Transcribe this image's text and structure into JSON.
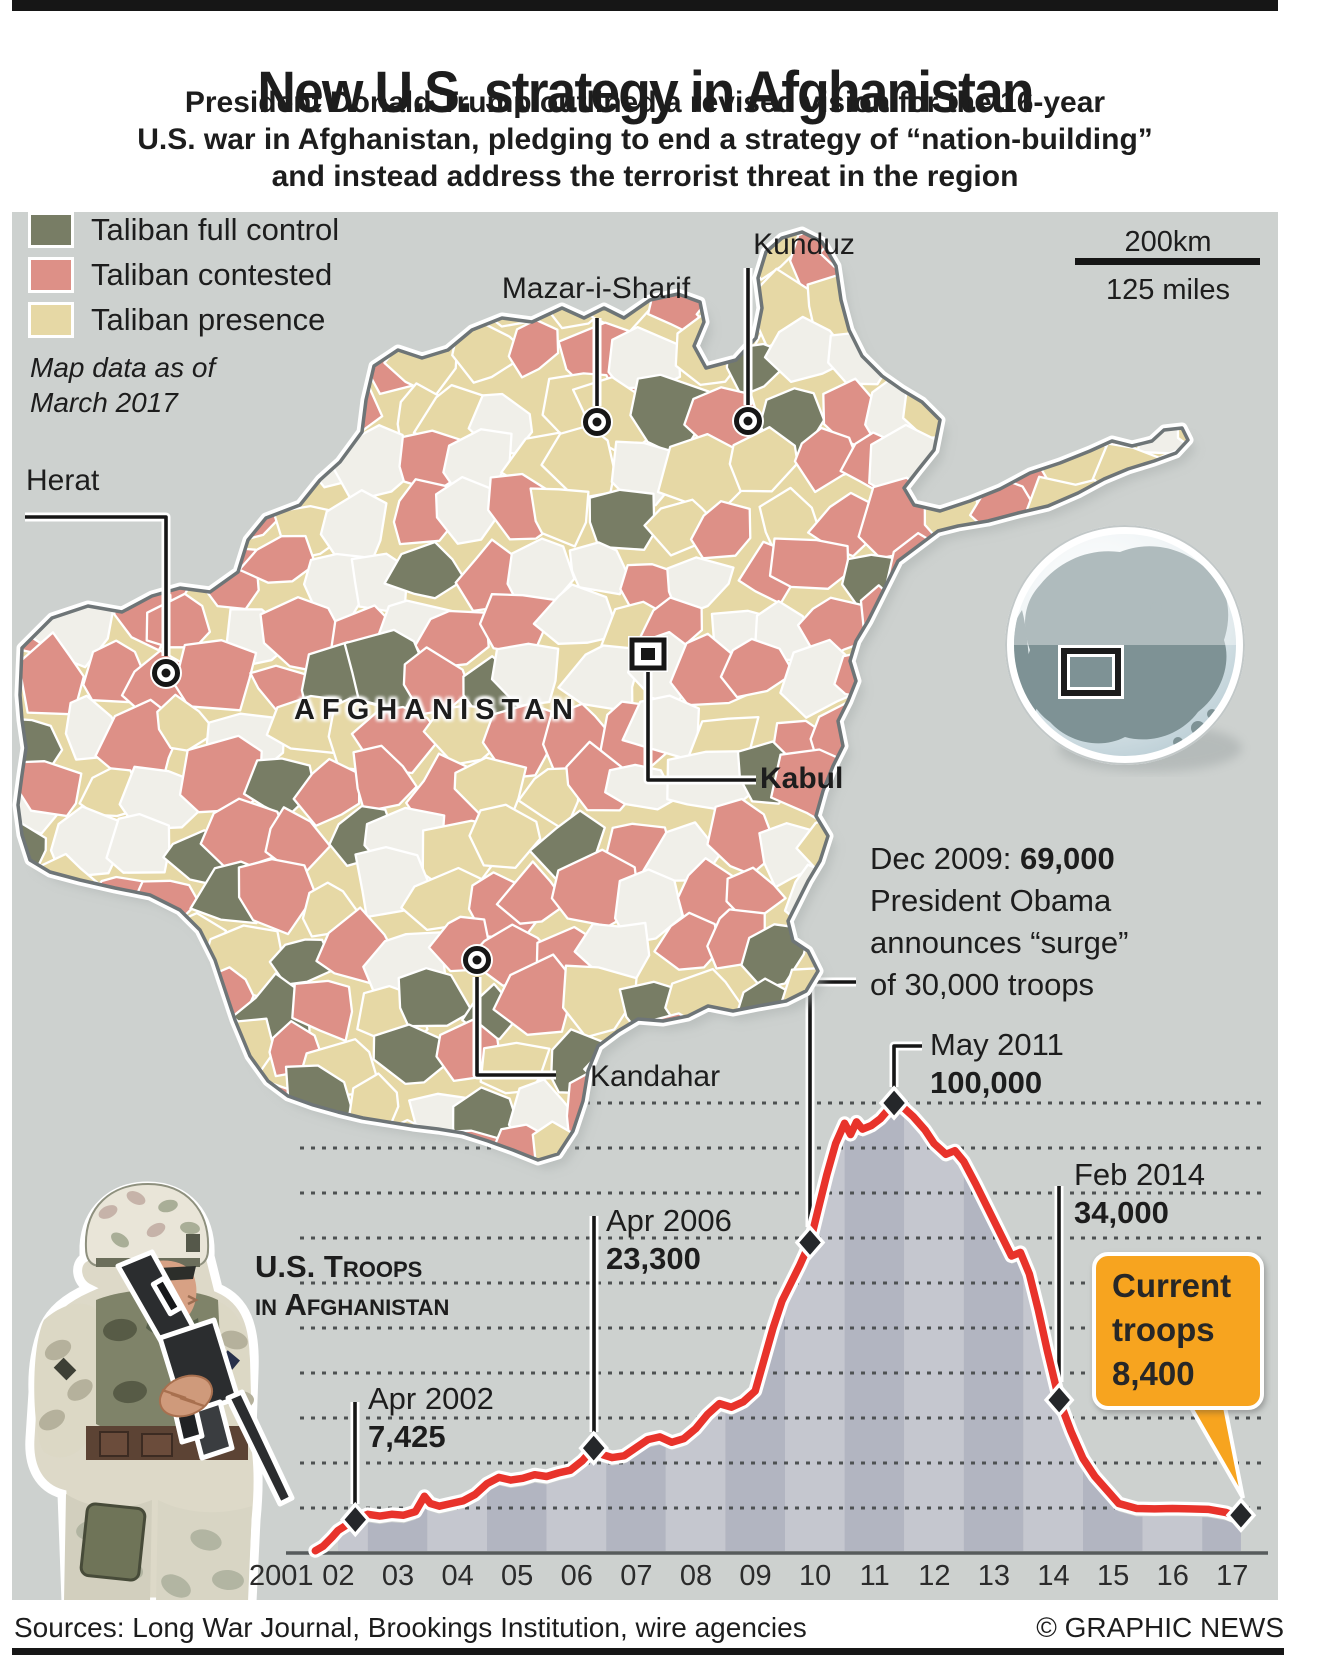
{
  "header": {
    "title": "New U.S. strategy in Afghanistan",
    "subtitle_lines": [
      "President Donald Trump outlined a revised vision for the 16-year",
      "U.S. war in Afghanistan, pledging to end a strategy of “nation-building”",
      "and instead address the terrorist threat in the region"
    ]
  },
  "map": {
    "legend": [
      {
        "label": "Taliban full control",
        "color": "#787d65"
      },
      {
        "label": "Taliban contested",
        "color": "#dd9087"
      },
      {
        "label": "Taliban presence",
        "color": "#e6d8a5"
      }
    ],
    "no_data_color": "#f0efe9",
    "note_lines": [
      "Map data as of",
      "March 2017"
    ],
    "country_label": "AFGHANISTAN",
    "cities": {
      "mazar": {
        "name": "Mazar-i-Sharif"
      },
      "kunduz": {
        "name": "Kunduz"
      },
      "herat": {
        "name": "Herat"
      },
      "kandahar": {
        "name": "Kandahar"
      },
      "kabul": {
        "name": "Kabul"
      }
    },
    "scale": {
      "top": "200km",
      "bottom": "125 miles"
    }
  },
  "chart_data": {
    "type": "line",
    "title_lines": [
      "U.S. Troops",
      "in Afghanistan"
    ],
    "line_color": "#e8332b",
    "x_ticks": [
      "2001",
      "02",
      "03",
      "04",
      "05",
      "06",
      "07",
      "08",
      "09",
      "10",
      "11",
      "12",
      "13",
      "14",
      "15",
      "16",
      "17"
    ],
    "ylim": [
      0,
      100000
    ],
    "gridline_step": 10000,
    "grid_on": true,
    "series": [
      {
        "name": "U.S. troops in Afghanistan",
        "points": [
          [
            2001.62,
            500
          ],
          [
            2001.75,
            1500
          ],
          [
            2001.9,
            3500
          ],
          [
            2002.0,
            5000
          ],
          [
            2002.29,
            7425
          ],
          [
            2002.5,
            8600
          ],
          [
            2002.7,
            8200
          ],
          [
            2002.9,
            8600
          ],
          [
            2003.1,
            8400
          ],
          [
            2003.3,
            9200
          ],
          [
            2003.45,
            12600
          ],
          [
            2003.55,
            11000
          ],
          [
            2003.7,
            10400
          ],
          [
            2003.9,
            11000
          ],
          [
            2004.1,
            11600
          ],
          [
            2004.3,
            13000
          ],
          [
            2004.5,
            15400
          ],
          [
            2004.7,
            16800
          ],
          [
            2004.9,
            16200
          ],
          [
            2005.1,
            16600
          ],
          [
            2005.3,
            17400
          ],
          [
            2005.5,
            17000
          ],
          [
            2005.7,
            17800
          ],
          [
            2005.9,
            18400
          ],
          [
            2006.1,
            20500
          ],
          [
            2006.29,
            23300
          ],
          [
            2006.45,
            21800
          ],
          [
            2006.6,
            21200
          ],
          [
            2006.8,
            21600
          ],
          [
            2007.0,
            23400
          ],
          [
            2007.2,
            25200
          ],
          [
            2007.4,
            25800
          ],
          [
            2007.6,
            24600
          ],
          [
            2007.8,
            25400
          ],
          [
            2008.0,
            27600
          ],
          [
            2008.2,
            30800
          ],
          [
            2008.4,
            33200
          ],
          [
            2008.6,
            32400
          ],
          [
            2008.8,
            33600
          ],
          [
            2009.0,
            36000
          ],
          [
            2009.15,
            43000
          ],
          [
            2009.3,
            50000
          ],
          [
            2009.45,
            56000
          ],
          [
            2009.6,
            60000
          ],
          [
            2009.75,
            64000
          ],
          [
            2009.92,
            69000
          ],
          [
            2010.05,
            76000
          ],
          [
            2010.2,
            84000
          ],
          [
            2010.35,
            91000
          ],
          [
            2010.5,
            95500
          ],
          [
            2010.6,
            93000
          ],
          [
            2010.7,
            95800
          ],
          [
            2010.8,
            94200
          ],
          [
            2010.95,
            95000
          ],
          [
            2011.1,
            96500
          ],
          [
            2011.33,
            100000
          ],
          [
            2011.5,
            98800
          ],
          [
            2011.65,
            97000
          ],
          [
            2011.85,
            94000
          ],
          [
            2012.0,
            91000
          ],
          [
            2012.2,
            88600
          ],
          [
            2012.35,
            89400
          ],
          [
            2012.5,
            87000
          ],
          [
            2012.7,
            82000
          ],
          [
            2012.85,
            78000
          ],
          [
            2013.0,
            74000
          ],
          [
            2013.15,
            70000
          ],
          [
            2013.3,
            66000
          ],
          [
            2013.45,
            66800
          ],
          [
            2013.6,
            62000
          ],
          [
            2013.75,
            54000
          ],
          [
            2013.9,
            45000
          ],
          [
            2014.1,
            34000
          ],
          [
            2014.3,
            27000
          ],
          [
            2014.5,
            21000
          ],
          [
            2014.7,
            17000
          ],
          [
            2014.9,
            14000
          ],
          [
            2015.1,
            11000
          ],
          [
            2015.4,
            9900
          ],
          [
            2015.7,
            9800
          ],
          [
            2016.0,
            9900
          ],
          [
            2016.3,
            9800
          ],
          [
            2016.6,
            9700
          ],
          [
            2016.9,
            9000
          ],
          [
            2017.05,
            8200
          ],
          [
            2017.15,
            8400
          ]
        ]
      }
    ],
    "key_points": [
      {
        "label": "Apr 2002",
        "year": 2002.29,
        "value": 7425
      },
      {
        "label": "Apr 2006",
        "year": 2006.29,
        "value": 23300
      },
      {
        "label": "Dec 2009",
        "year": 2009.92,
        "value": 69000
      },
      {
        "label": "May 2011",
        "year": 2011.33,
        "value": 100000
      },
      {
        "label": "Feb 2014",
        "year": 2014.1,
        "value": 34000
      },
      {
        "label": "Current",
        "year": 2017.15,
        "value": 8400
      }
    ],
    "annotations": {
      "apr2002": {
        "date": "Apr 2002",
        "value": "7,425"
      },
      "apr2006": {
        "date": "Apr 2006",
        "value": "23,300"
      },
      "dec2009": {
        "date": "Dec 2009:",
        "value": "69,000",
        "desc": [
          "President Obama",
          "announces “surge”",
          "of 30,000 troops"
        ]
      },
      "may2011": {
        "date": "May 2011",
        "value": "100,000"
      },
      "feb2014": {
        "date": "Feb 2014",
        "value": "34,000"
      }
    },
    "callout": {
      "lines": [
        "Current",
        "troops",
        "8,400"
      ],
      "color": "#f7a41f"
    }
  },
  "footer": {
    "sources": "Sources: Long War Journal, Brookings Institution, wire agencies",
    "credit": "© GRAPHIC NEWS"
  }
}
